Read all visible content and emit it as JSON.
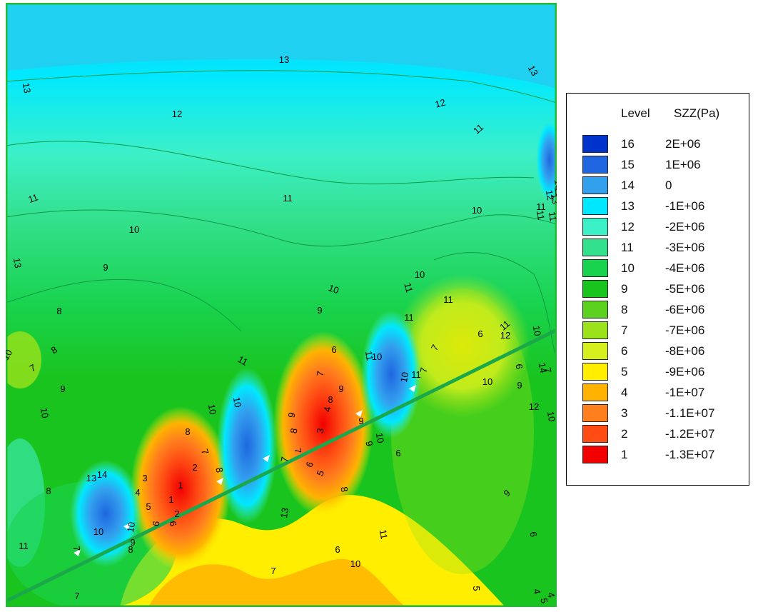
{
  "chart_data": {
    "type": "heatmap",
    "title": "",
    "legend": {
      "position": "right",
      "header_level": "Level",
      "header_variable": "SZZ(Pa)",
      "levels": [
        {
          "level": "16",
          "value": "2E+06",
          "color": "#0033cc"
        },
        {
          "level": "15",
          "value": "1E+06",
          "color": "#1f66e0"
        },
        {
          "level": "14",
          "value": "0",
          "color": "#33a0ee"
        },
        {
          "level": "13",
          "value": "-1E+06",
          "color": "#00e8ff"
        },
        {
          "level": "12",
          "value": "-2E+06",
          "color": "#3cf0c8"
        },
        {
          "level": "11",
          "value": "-3E+06",
          "color": "#33e08c"
        },
        {
          "level": "10",
          "value": "-4E+06",
          "color": "#19d34e"
        },
        {
          "level": "9",
          "value": "-5E+06",
          "color": "#19c41e"
        },
        {
          "level": "8",
          "value": "-6E+06",
          "color": "#5cd11f"
        },
        {
          "level": "7",
          "value": "-7E+06",
          "color": "#9be21a"
        },
        {
          "level": "6",
          "value": "-8E+06",
          "color": "#d6f01e"
        },
        {
          "level": "5",
          "value": "-9E+06",
          "color": "#ffee00"
        },
        {
          "level": "4",
          "value": "-1E+07",
          "color": "#ffb300"
        },
        {
          "level": "3",
          "value": "-1.1E+07",
          "color": "#ff7f1e"
        },
        {
          "level": "2",
          "value": "-1.2E+07",
          "color": "#ff4b14"
        },
        {
          "level": "1",
          "value": "-1.3E+07",
          "color": "#f20000"
        }
      ]
    },
    "contour_labels": [
      "13",
      "13",
      "13",
      "12",
      "12",
      "11",
      "11",
      "11",
      "11",
      "10",
      "10",
      "13",
      "9",
      "8",
      "10",
      "8",
      "7",
      "10",
      "9",
      "10",
      "11",
      "11",
      "10",
      "9",
      "8",
      "7",
      "10",
      "8",
      "9",
      "7",
      "7",
      "6",
      "7",
      "6",
      "10",
      "11",
      "10",
      "9",
      "8",
      "7",
      "6",
      "5",
      "4",
      "3",
      "2",
      "1",
      "1",
      "2",
      "3",
      "4",
      "5",
      "6",
      "7",
      "8",
      "9",
      "6",
      "10",
      "9",
      "8",
      "7",
      "10",
      "14",
      "13",
      "10",
      "9",
      "8",
      "11",
      "10",
      "11",
      "11",
      "10",
      "13",
      "6",
      "7",
      "8",
      "6",
      "7",
      "10",
      "11",
      "9",
      "6",
      "5",
      "4",
      "5",
      "4",
      "6",
      "7",
      "10",
      "9",
      "11",
      "12",
      "10",
      "11",
      "11",
      "11",
      "12",
      "13",
      "14",
      "11",
      "12",
      "10",
      "11"
    ]
  }
}
